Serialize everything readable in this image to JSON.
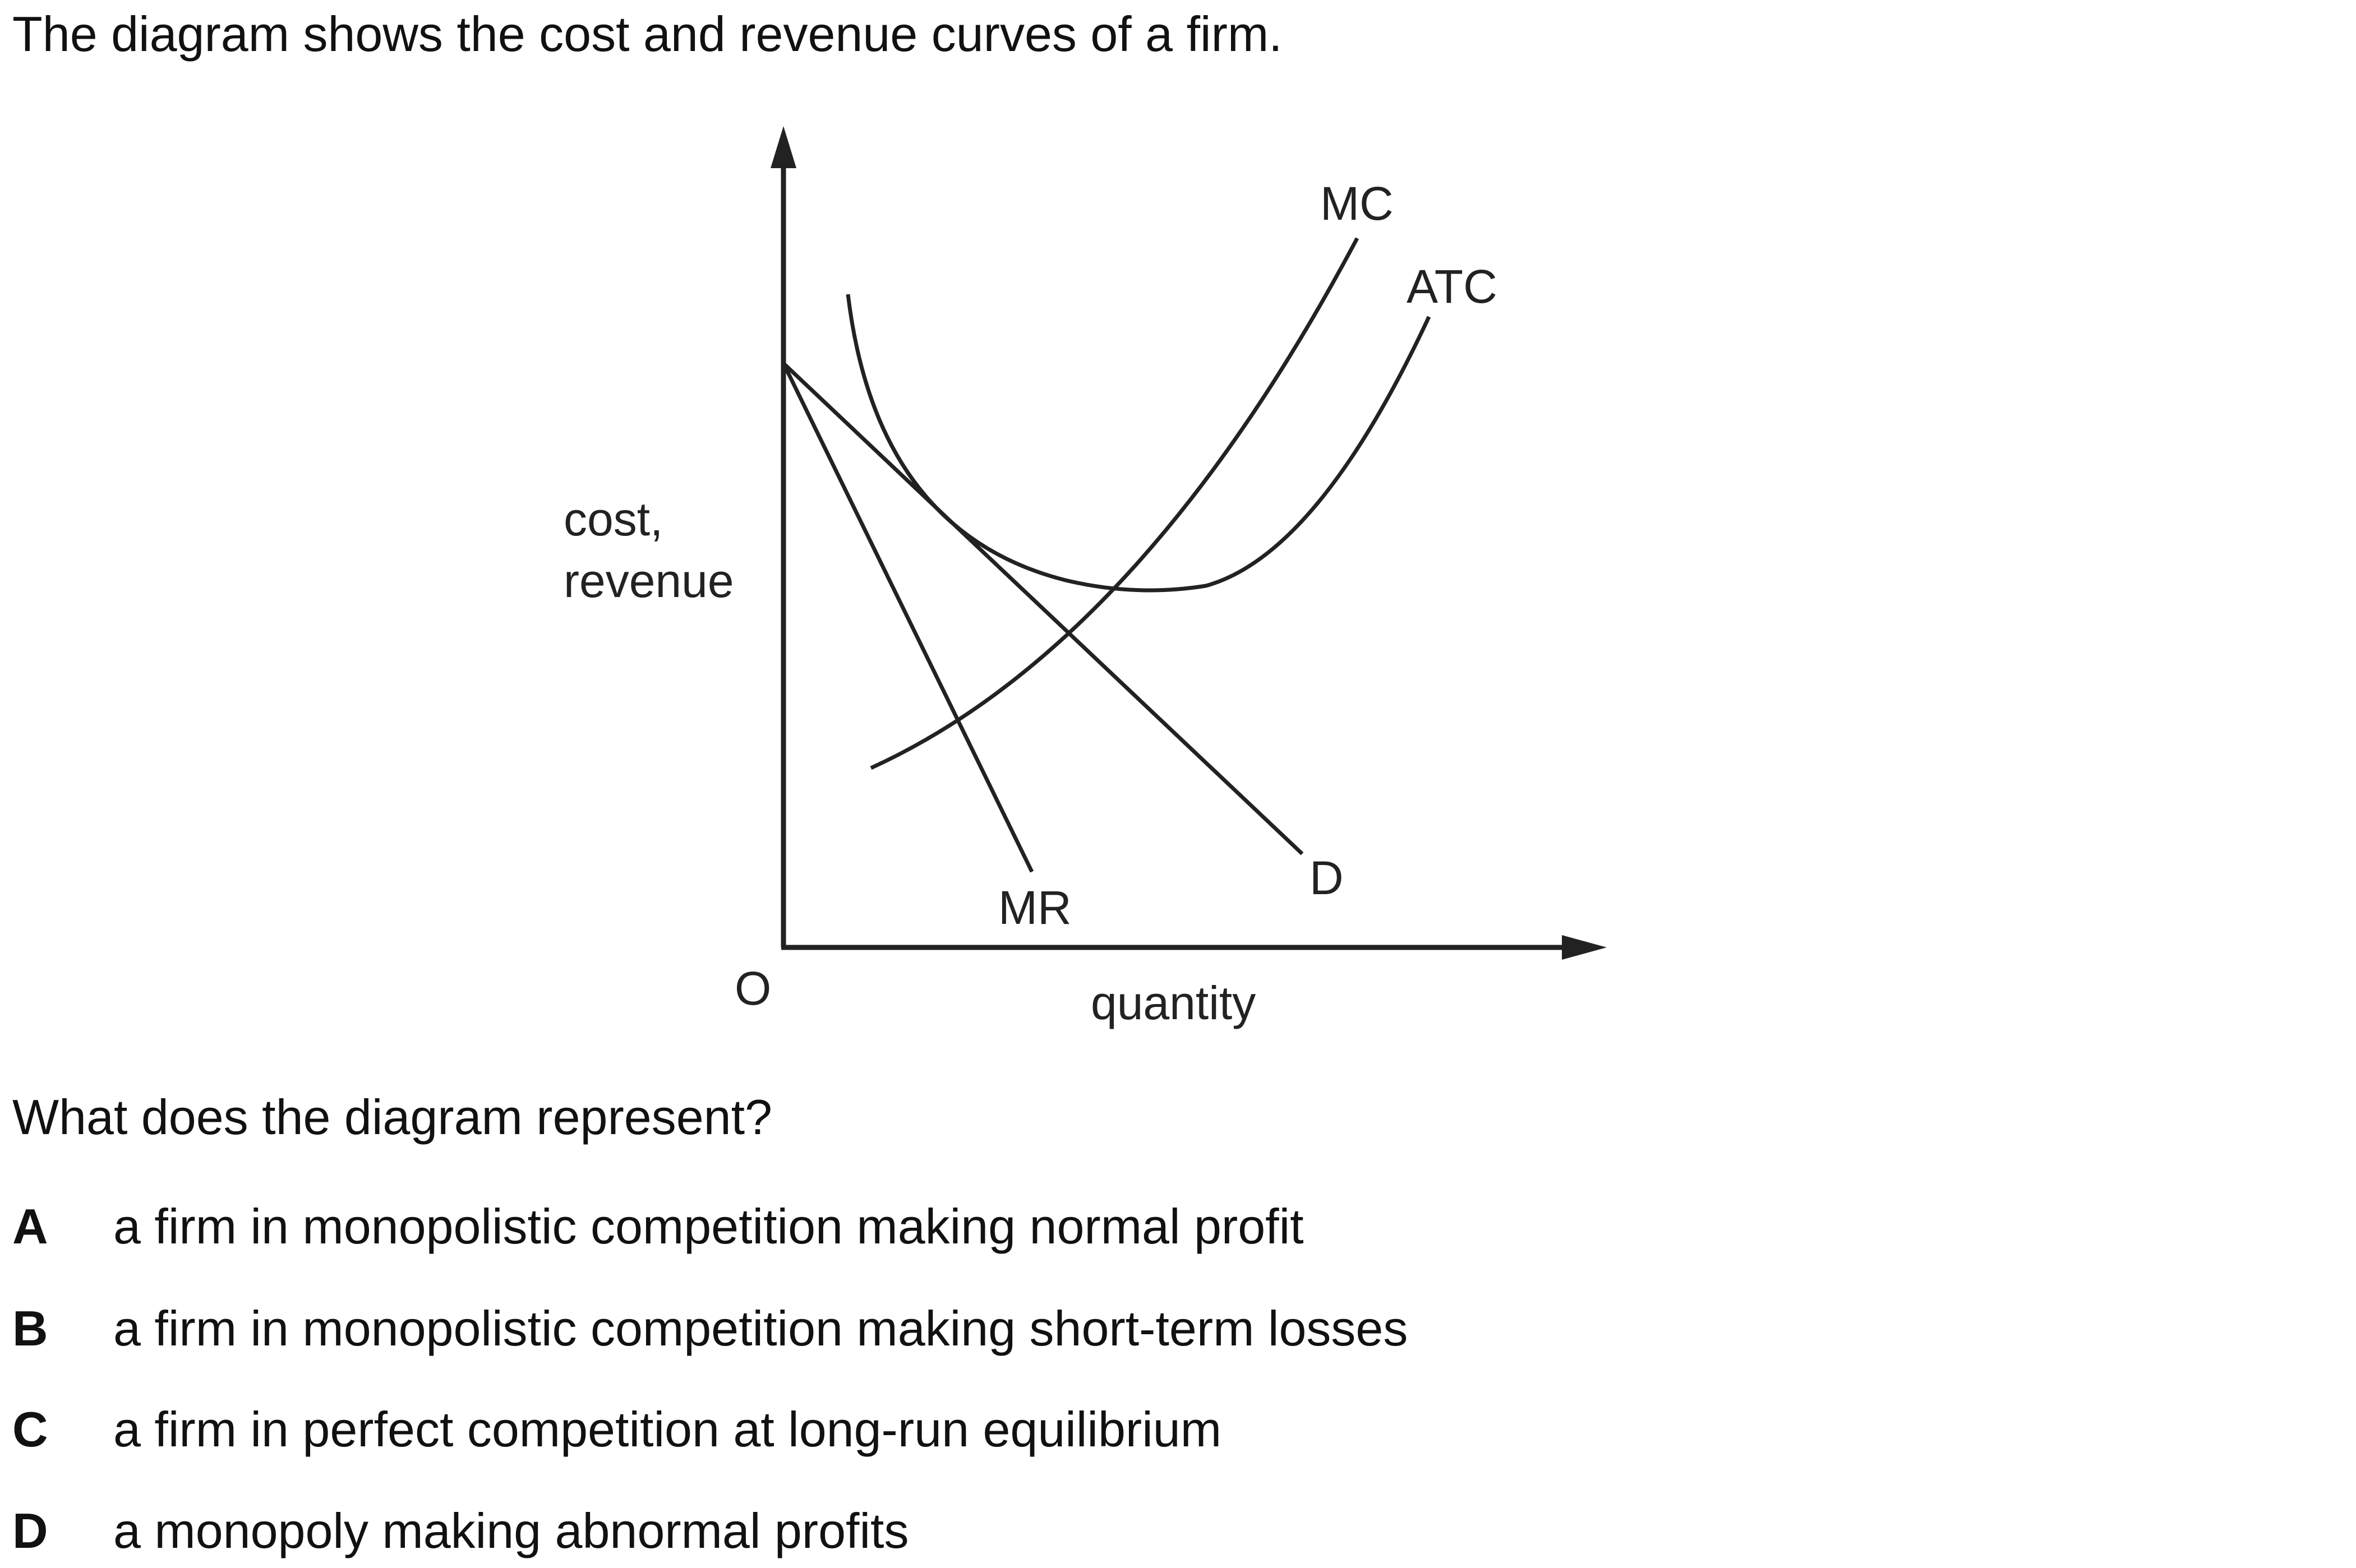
{
  "intro": "The diagram shows the cost and revenue curves of a firm.",
  "diagram": {
    "y_axis_label_line1": "cost,",
    "y_axis_label_line2": "revenue",
    "x_axis_label": "quantity",
    "origin_label": "O",
    "curve_labels": {
      "mc": "MC",
      "atc": "ATC",
      "mr": "MR",
      "d": "D"
    }
  },
  "question": "What does the diagram represent?",
  "options": [
    {
      "letter": "A",
      "text": "a firm in monopolistic competition making normal profit"
    },
    {
      "letter": "B",
      "text": "a firm in monopolistic competition making short-term losses"
    },
    {
      "letter": "C",
      "text": "a firm in perfect competition at long-run equilibrium"
    },
    {
      "letter": "D",
      "text": "a monopoly making abnormal profits"
    }
  ]
}
